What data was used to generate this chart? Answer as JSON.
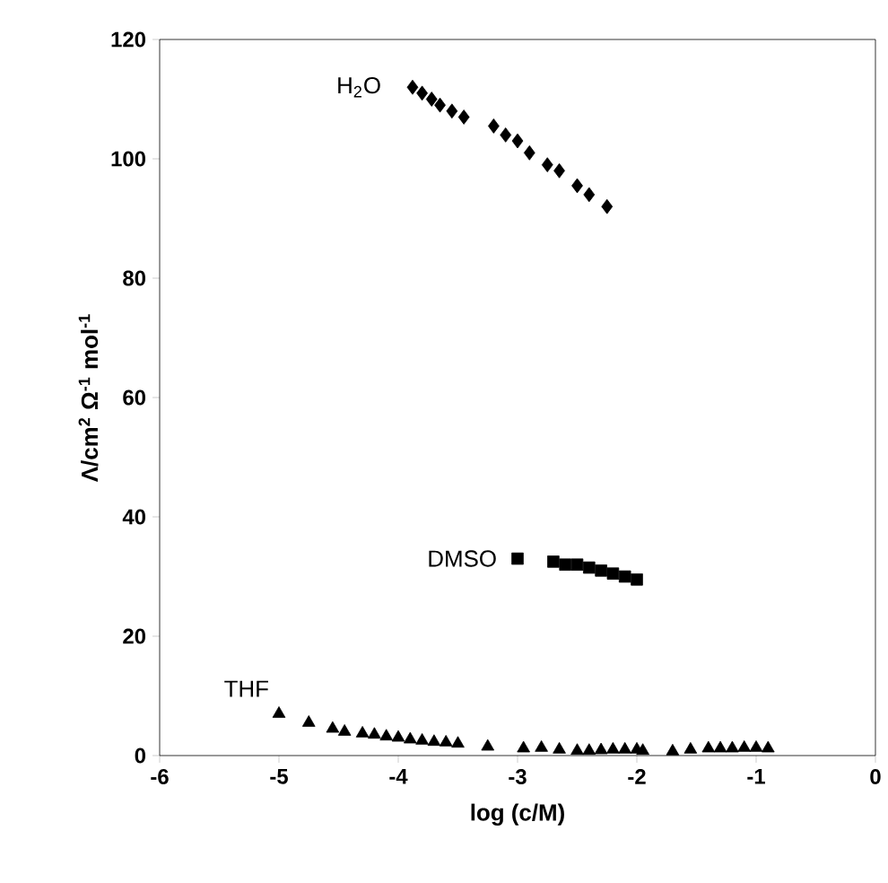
{
  "chart_data": {
    "type": "scatter",
    "xlabel": "log (c/M)",
    "ylabel": "Λ/cm$^{2}$ Ω$^{-1}$ mol$^{-1}$",
    "xlim": [
      -6,
      0
    ],
    "xticks": [
      -6,
      -5,
      -4,
      -3,
      -2,
      -1,
      0
    ],
    "ylim": [
      0,
      120
    ],
    "yticks": [
      0,
      20,
      40,
      60,
      80,
      100,
      120
    ],
    "grid": false,
    "legend": false,
    "series": [
      {
        "name": "H$_{2}$O",
        "color": "#000000",
        "marker": "diamond",
        "x": [
          -3.88,
          -3.8,
          -3.72,
          -3.65,
          -3.55,
          -3.45,
          -3.2,
          -3.1,
          -3.0,
          -2.9,
          -2.75,
          -2.65,
          -2.5,
          -2.4,
          -2.25
        ],
        "values": [
          112,
          111,
          110,
          109,
          108,
          107,
          105.5,
          104,
          103,
          101,
          99,
          98,
          95.5,
          94,
          92
        ]
      },
      {
        "name": "DMSO",
        "color": "#000000",
        "marker": "square",
        "x": [
          -3.0,
          -2.7,
          -2.6,
          -2.5,
          -2.4,
          -2.3,
          -2.2,
          -2.1,
          -2.0
        ],
        "values": [
          33,
          32.5,
          32,
          32,
          31.5,
          31,
          30.5,
          30,
          29.5
        ]
      },
      {
        "name": "THF",
        "color": "#000000",
        "marker": "triangle",
        "x": [
          -5.0,
          -4.75,
          -4.55,
          -4.45,
          -4.3,
          -4.2,
          -4.1,
          -4.0,
          -3.9,
          -3.8,
          -3.7,
          -3.6,
          -3.5,
          -3.25,
          -2.95,
          -2.8,
          -2.65,
          -2.5,
          -2.4,
          -2.3,
          -2.2,
          -2.1,
          -2.0,
          -1.95,
          -1.7,
          -1.55,
          -1.4,
          -1.3,
          -1.2,
          -1.1,
          -1.0,
          -0.9
        ],
        "values": [
          7,
          5.5,
          4.5,
          4,
          3.7,
          3.5,
          3.2,
          3,
          2.7,
          2.5,
          2.3,
          2.2,
          2,
          1.5,
          1.2,
          1.3,
          1,
          0.8,
          0.8,
          0.9,
          1,
          1,
          1,
          0.8,
          0.7,
          1,
          1.2,
          1.2,
          1.2,
          1.3,
          1.3,
          1.2
        ]
      }
    ]
  }
}
